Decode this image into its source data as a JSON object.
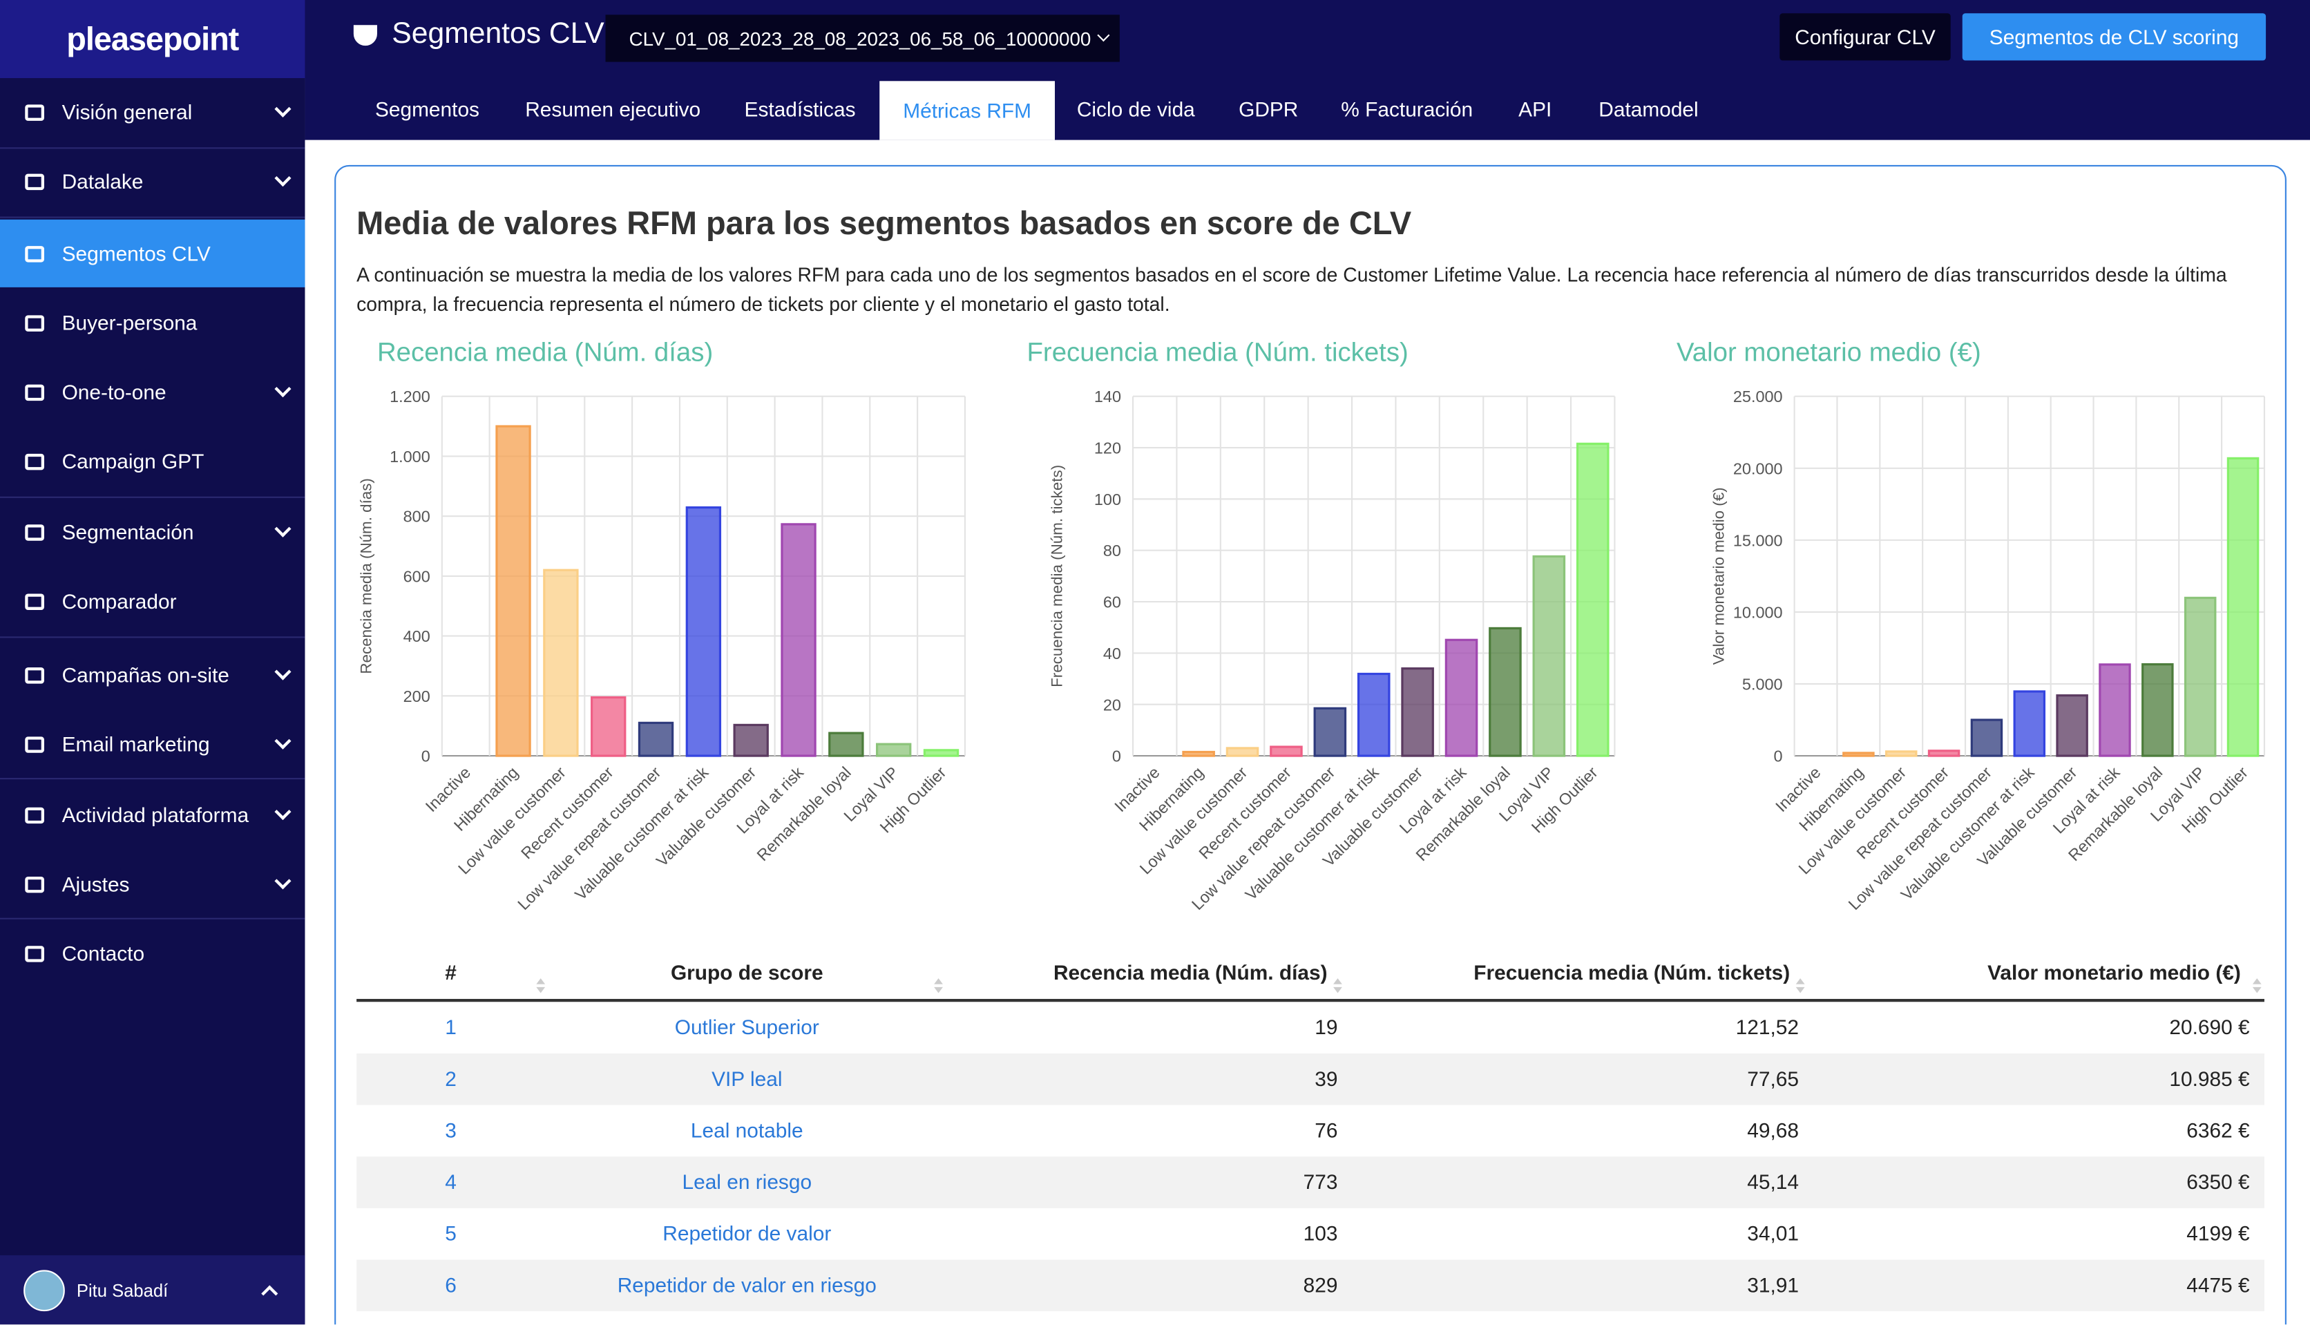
{
  "sidebar": {
    "logo": "pleasepoint",
    "items": [
      "Visión general",
      "Datalake",
      "Segmentos CLV",
      "Buyer-persona",
      "One-to-one",
      "Campaign GPT",
      "Segmentación",
      "Comparador",
      "Campañas on-site",
      "Email marketing",
      "Actividad plataforma",
      "Ajustes",
      "Contacto"
    ],
    "user": "Pitu Sabadí"
  },
  "header": {
    "title": "Segmentos CLV",
    "select": "CLV_01_08_2023_28_08_2023_06_58_06_10000000",
    "buttons": [
      "Configurar CLV",
      "Segmentos de CLV scoring"
    ]
  },
  "tabs": [
    "Segmentos",
    "Resumen ejecutivo",
    "Estadísticas",
    "Métricas RFM",
    "Ciclo de vida",
    "GDPR",
    "% Facturación",
    "API",
    "Datamodel"
  ],
  "content": {
    "heading": "Media de valores RFM para los segmentos basados en score de CLV",
    "description": "A continuación se muestra la media de los valores RFM para cada uno de los segmentos basados en el score de Customer Lifetime Value. La recencia hace referencia al número de días transcurridos desde la última compra, la frecuencia representa el número de tickets por cliente y el monetario el gasto total."
  },
  "chart_data": [
    {
      "type": "bar",
      "title": "Recencia media (Núm. días)",
      "ylabel": "Recencia media (Núm. días)",
      "categories": [
        "Inactive",
        "Hibernating",
        "Low value customer",
        "Recent customer",
        "Low value repeat customer",
        "Valuable customer at risk",
        "Valuable customer",
        "Loyal at risk",
        "Remarkable loyal",
        "Loyal VIP",
        "High Outlier"
      ],
      "values": [
        0,
        1100,
        620,
        195,
        110,
        829,
        103,
        773,
        76,
        39,
        19
      ],
      "colors": [
        "#cccccc",
        "#f5a04f",
        "#fbcf86",
        "#ef5f86",
        "#2f3b7c",
        "#3444e0",
        "#5b3a60",
        "#a047b0",
        "#4c7c3b",
        "#8cc47a",
        "#86f06a"
      ],
      "ylim": [
        0,
        1200
      ],
      "yticks": [
        0,
        200,
        400,
        600,
        800,
        {
          "value": 1000,
          "label": "1.000"
        },
        {
          "value": 1200,
          "label": "1.200"
        }
      ],
      "grid": true
    },
    {
      "type": "bar",
      "title": "Frecuencia media (Núm. tickets)",
      "ylabel": "Frecuencia media (Núm. tickets)",
      "categories": [
        "Inactive",
        "Hibernating",
        "Low value customer",
        "Recent customer",
        "Low value repeat customer",
        "Valuable customer at risk",
        "Valuable customer",
        "Loyal at risk",
        "Remarkable loyal",
        "Loyal VIP",
        "High Outlier"
      ],
      "values": [
        0,
        1.5,
        3,
        3.5,
        18.5,
        31.91,
        34.01,
        45.14,
        49.68,
        77.65,
        121.52
      ],
      "colors": [
        "#cccccc",
        "#f5a04f",
        "#fbcf86",
        "#ef5f86",
        "#2f3b7c",
        "#3444e0",
        "#5b3a60",
        "#a047b0",
        "#4c7c3b",
        "#8cc47a",
        "#86f06a"
      ],
      "ylim": [
        0,
        140
      ],
      "yticks": [
        0,
        20,
        40,
        60,
        80,
        100,
        120,
        140
      ],
      "grid": true
    },
    {
      "type": "bar",
      "title": "Valor monetario medio (€)",
      "ylabel": "Valor monetario medio (€)",
      "categories": [
        "Inactive",
        "Hibernating",
        "Low value customer",
        "Recent customer",
        "Low value repeat customer",
        "Valuable customer at risk",
        "Valuable customer",
        "Loyal at risk",
        "Remarkable loyal",
        "Loyal VIP",
        "High Outlier"
      ],
      "values": [
        0,
        200,
        300,
        350,
        2500,
        4475,
        4199,
        6350,
        6362,
        10985,
        20690
      ],
      "colors": [
        "#cccccc",
        "#f5a04f",
        "#fbcf86",
        "#ef5f86",
        "#2f3b7c",
        "#3444e0",
        "#5b3a60",
        "#a047b0",
        "#4c7c3b",
        "#8cc47a",
        "#86f06a"
      ],
      "ylim": [
        0,
        25000
      ],
      "yticks": [
        0,
        {
          "value": 5000,
          "label": "5.000"
        },
        {
          "value": 10000,
          "label": "10.000"
        },
        {
          "value": 15000,
          "label": "15.000"
        },
        {
          "value": 20000,
          "label": "20.000"
        },
        {
          "value": 25000,
          "label": "25.000"
        }
      ],
      "grid": true
    }
  ],
  "table": {
    "headers": [
      "#",
      "Grupo de score",
      "Recencia media (Núm. días)",
      "Frecuencia media (Núm. tickets)",
      "Valor monetario medio (€)"
    ],
    "rows": [
      [
        "1",
        "Outlier Superior",
        "19",
        "121,52",
        "20.690 €"
      ],
      [
        "2",
        "VIP leal",
        "39",
        "77,65",
        "10.985 €"
      ],
      [
        "3",
        "Leal notable",
        "76",
        "49,68",
        "6362 €"
      ],
      [
        "4",
        "Leal en riesgo",
        "773",
        "45,14",
        "6350 €"
      ],
      [
        "5",
        "Repetidor de valor",
        "103",
        "34,01",
        "4199 €"
      ],
      [
        "6",
        "Repetidor de valor en riesgo",
        "829",
        "31,91",
        "4475 €"
      ]
    ]
  }
}
